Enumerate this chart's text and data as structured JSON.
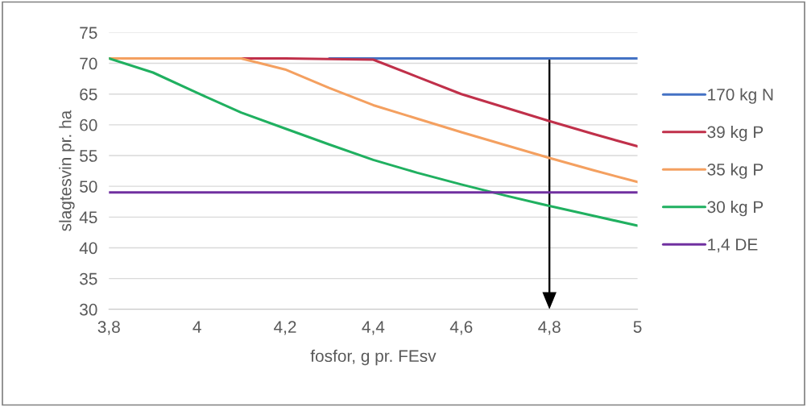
{
  "chart_data": {
    "type": "line",
    "xlabel": "fosfor, g pr. FEsv",
    "ylabel": "slagtesvin pr. ha",
    "x": [
      3.8,
      3.9,
      4.0,
      4.1,
      4.2,
      4.3,
      4.4,
      4.5,
      4.6,
      4.7,
      4.8,
      4.9,
      5.0
    ],
    "series": [
      {
        "name": "170 kg N",
        "color": "#4472c4",
        "values": [
          null,
          null,
          null,
          null,
          null,
          70.8,
          70.8,
          70.8,
          70.8,
          70.8,
          70.8,
          70.8,
          70.8
        ]
      },
      {
        "name": "39 kg P",
        "color": "#c0304a",
        "values": [
          null,
          null,
          null,
          70.8,
          70.8,
          70.7,
          70.6,
          67.8,
          65.0,
          62.8,
          60.6,
          58.5,
          56.5
        ]
      },
      {
        "name": "35 kg P",
        "color": "#f4a060",
        "values": [
          70.8,
          70.8,
          70.8,
          70.8,
          69.0,
          66.0,
          63.2,
          61.0,
          58.8,
          56.7,
          54.6,
          52.6,
          50.7
        ]
      },
      {
        "name": "30 kg P",
        "color": "#20b060",
        "values": [
          70.8,
          68.5,
          65.2,
          62.0,
          59.4,
          56.8,
          54.3,
          52.2,
          50.3,
          48.5,
          46.8,
          45.2,
          43.6
        ]
      },
      {
        "name": "1,4 DE",
        "color": "#7030a0",
        "values": [
          49.0,
          49.0,
          49.0,
          49.0,
          49.0,
          49.0,
          49.0,
          49.0,
          49.0,
          49.0,
          49.0,
          49.0,
          49.0
        ]
      }
    ],
    "xlim": [
      3.8,
      5.0
    ],
    "xticks": [
      {
        "value": 3.8,
        "label": "3,8"
      },
      4,
      {
        "value": 4.2,
        "label": "4,2"
      },
      {
        "value": 4.4,
        "label": "4,4"
      },
      {
        "value": 4.6,
        "label": "4,6"
      },
      {
        "value": 4.8,
        "label": "4,8"
      },
      5
    ],
    "ylim": [
      30,
      75
    ],
    "yticks": [
      30,
      35,
      40,
      45,
      50,
      55,
      60,
      65,
      70,
      75
    ],
    "grid": "y",
    "legend": "right",
    "marker": "none",
    "line_style": "solid"
  }
}
